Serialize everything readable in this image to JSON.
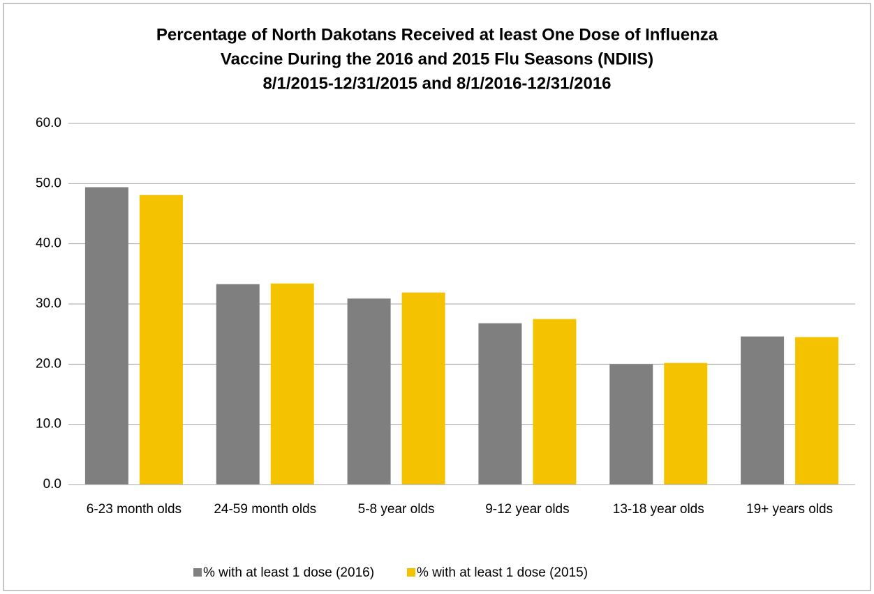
{
  "chart_data": {
    "type": "bar",
    "title_lines": [
      "Percentage of North Dakotans Received at least One Dose of Influenza",
      "Vaccine During the 2016 and 2015 Flu Seasons (NDIIS)",
      "8/1/2015-12/31/2015 and 8/1/2016-12/31/2016"
    ],
    "categories": [
      "6-23 month olds",
      "24-59 month olds",
      "5-8 year olds",
      "9-12 year olds",
      "13-18 year olds",
      "19+ years olds"
    ],
    "series": [
      {
        "name": "% with at least 1 dose (2016)",
        "color": "#7f7f7f",
        "values": [
          49.4,
          33.3,
          30.9,
          26.8,
          20.0,
          24.6
        ]
      },
      {
        "name": "% with at least 1 dose (2015)",
        "color": "#f5c200",
        "values": [
          48.1,
          33.4,
          31.9,
          27.5,
          20.2,
          24.5
        ]
      }
    ],
    "ylim": [
      0,
      60
    ],
    "yticks": [
      {
        "value": 0,
        "label": "0.0"
      },
      {
        "value": 10,
        "label": "10.0"
      },
      {
        "value": 20,
        "label": "20.0"
      },
      {
        "value": 30,
        "label": "30.0"
      },
      {
        "value": 40,
        "label": "40.0"
      },
      {
        "value": 50,
        "label": "50.0"
      },
      {
        "value": 60,
        "label": "60.0"
      }
    ],
    "grid": true,
    "legend": "bottom"
  }
}
